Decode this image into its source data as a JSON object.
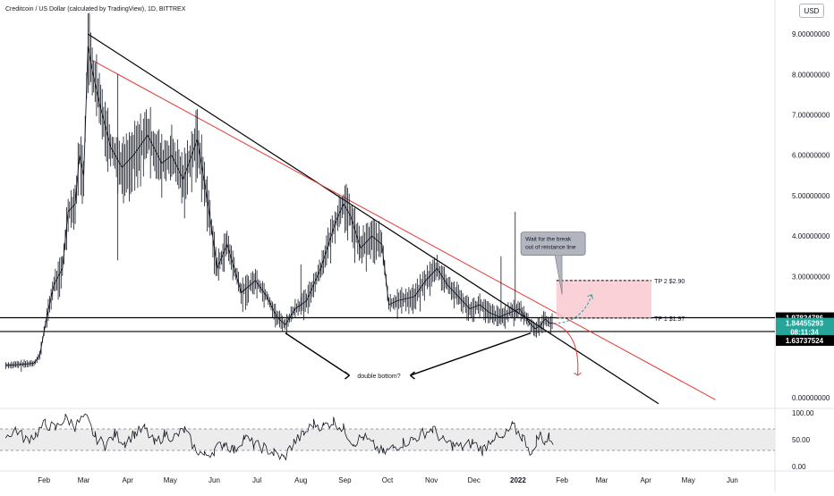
{
  "header": {
    "symbol_title": "Creditcoin / US Dollar (calculated by TradingView), 1D, BITTREX",
    "currency": "USD"
  },
  "colors": {
    "price_line": "#131722",
    "red_trendline": "#e53935",
    "tp_zone": "#f8c9cf",
    "rsi_line": "#131722",
    "current_price_badge": "#26a69a",
    "label_badge": "#000000"
  },
  "chart_data": [
    {
      "type": "line",
      "title": "",
      "y_axis": {
        "scale": "linear",
        "range": [
          -0.2,
          9.4
        ],
        "ticks": [
          "9.00000000",
          "8.00000000",
          "7.00000000",
          "6.00000000",
          "5.00000000",
          "4.00000000",
          "3.00000000",
          "0.00000000"
        ],
        "tick_values": [
          9,
          8,
          7,
          6,
          5,
          4,
          3,
          0
        ]
      },
      "x_axis": {
        "ticks": [
          "Feb",
          "Mar",
          "Apr",
          "May",
          "Jun",
          "Jul",
          "Aug",
          "Sep",
          "Oct",
          "Nov",
          "Dec",
          "2022",
          "Feb",
          "Mar",
          "Apr",
          "May",
          "Jun"
        ],
        "tick_dates": [
          "2021-02-01",
          "2021-03-01",
          "2021-04-01",
          "2021-05-01",
          "2021-06-01",
          "2021-07-01",
          "2021-08-01",
          "2021-09-01",
          "2021-10-01",
          "2021-11-01",
          "2021-12-01",
          "2022-01-01",
          "2022-02-01",
          "2022-03-01",
          "2022-04-01",
          "2022-05-01",
          "2022-06-01"
        ],
        "bold_tick": "2022"
      },
      "series": [
        {
          "points": [
            [
              "2021-01-05",
              0.8
            ],
            [
              "2021-01-15",
              0.82
            ],
            [
              "2021-01-25",
              0.85
            ],
            [
              "2021-01-29",
              1.05
            ],
            [
              "2021-02-03",
              2.0
            ],
            [
              "2021-02-08",
              2.8
            ],
            [
              "2021-02-14",
              3.2
            ],
            [
              "2021-02-18",
              4.6
            ],
            [
              "2021-02-23",
              4.8
            ],
            [
              "2021-02-26",
              6.0
            ],
            [
              "2021-03-01",
              5.5
            ],
            [
              "2021-03-04",
              8.7
            ],
            [
              "2021-03-07",
              8.1
            ],
            [
              "2021-03-12",
              7.3
            ],
            [
              "2021-03-20",
              6.2
            ],
            [
              "2021-03-28",
              5.7
            ],
            [
              "2021-04-05",
              6.0
            ],
            [
              "2021-04-15",
              6.5
            ],
            [
              "2021-04-25",
              5.8
            ],
            [
              "2021-05-02",
              6.0
            ],
            [
              "2021-05-10",
              5.4
            ],
            [
              "2021-05-20",
              6.4
            ],
            [
              "2021-05-28",
              4.7
            ],
            [
              "2021-06-03",
              3.2
            ],
            [
              "2021-06-10",
              3.8
            ],
            [
              "2021-06-20",
              2.6
            ],
            [
              "2021-06-30",
              2.9
            ],
            [
              "2021-07-08",
              2.5
            ],
            [
              "2021-07-15",
              2.0
            ],
            [
              "2021-07-21",
              1.8
            ],
            [
              "2021-07-28",
              2.2
            ],
            [
              "2021-08-05",
              2.4
            ],
            [
              "2021-08-15",
              3.2
            ],
            [
              "2021-08-25",
              4.3
            ],
            [
              "2021-08-31",
              4.8
            ],
            [
              "2021-09-05",
              4.5
            ],
            [
              "2021-09-12",
              3.7
            ],
            [
              "2021-09-20",
              4.0
            ],
            [
              "2021-09-27",
              3.8
            ],
            [
              "2021-10-02",
              2.3
            ],
            [
              "2021-10-08",
              2.4
            ],
            [
              "2021-10-20",
              2.5
            ],
            [
              "2021-10-28",
              2.9
            ],
            [
              "2021-11-05",
              3.2
            ],
            [
              "2021-11-12",
              2.8
            ],
            [
              "2021-11-20",
              2.5
            ],
            [
              "2021-11-28",
              2.2
            ],
            [
              "2021-12-05",
              2.3
            ],
            [
              "2021-12-12",
              2.1
            ],
            [
              "2021-12-19",
              2.0
            ],
            [
              "2021-12-26",
              2.1
            ],
            [
              "2022-01-02",
              2.2
            ],
            [
              "2022-01-08",
              1.9
            ],
            [
              "2022-01-13",
              1.7
            ],
            [
              "2022-01-17",
              1.8
            ],
            [
              "2022-01-20",
              1.95
            ],
            [
              "2022-01-23",
              1.85
            ],
            [
              "2022-01-26",
              1.84
            ]
          ]
        }
      ]
    },
    {
      "type": "line",
      "title": "",
      "y_axis": {
        "range": [
          0,
          100
        ],
        "ticks": [
          "100.00",
          "50.00",
          "0.00"
        ],
        "tick_values": [
          100,
          50,
          0
        ]
      },
      "series": [
        {
          "points": [
            [
              "2021-01-05",
              55
            ],
            [
              "2021-01-12",
              70
            ],
            [
              "2021-01-19",
              50
            ],
            [
              "2021-01-26",
              60
            ],
            [
              "2021-02-02",
              80
            ],
            [
              "2021-02-09",
              70
            ],
            [
              "2021-02-16",
              92
            ],
            [
              "2021-02-23",
              75
            ],
            [
              "2021-03-02",
              95
            ],
            [
              "2021-03-09",
              55
            ],
            [
              "2021-03-16",
              40
            ],
            [
              "2021-03-23",
              60
            ],
            [
              "2021-03-30",
              45
            ],
            [
              "2021-04-06",
              62
            ],
            [
              "2021-04-13",
              70
            ],
            [
              "2021-04-20",
              42
            ],
            [
              "2021-04-27",
              60
            ],
            [
              "2021-05-04",
              55
            ],
            [
              "2021-05-11",
              68
            ],
            [
              "2021-05-18",
              35
            ],
            [
              "2021-05-25",
              20
            ],
            [
              "2021-06-01",
              30
            ],
            [
              "2021-06-08",
              45
            ],
            [
              "2021-06-15",
              30
            ],
            [
              "2021-06-22",
              55
            ],
            [
              "2021-06-29",
              40
            ],
            [
              "2021-07-06",
              35
            ],
            [
              "2021-07-13",
              25
            ],
            [
              "2021-07-20",
              15
            ],
            [
              "2021-07-27",
              45
            ],
            [
              "2021-08-03",
              60
            ],
            [
              "2021-08-10",
              80
            ],
            [
              "2021-08-17",
              75
            ],
            [
              "2021-08-24",
              85
            ],
            [
              "2021-08-31",
              70
            ],
            [
              "2021-09-07",
              45
            ],
            [
              "2021-09-14",
              55
            ],
            [
              "2021-09-21",
              40
            ],
            [
              "2021-09-28",
              25
            ],
            [
              "2021-10-05",
              35
            ],
            [
              "2021-10-12",
              45
            ],
            [
              "2021-10-19",
              50
            ],
            [
              "2021-10-26",
              62
            ],
            [
              "2021-11-02",
              70
            ],
            [
              "2021-11-09",
              48
            ],
            [
              "2021-11-16",
              40
            ],
            [
              "2021-11-23",
              35
            ],
            [
              "2021-11-30",
              45
            ],
            [
              "2021-12-07",
              30
            ],
            [
              "2021-12-14",
              55
            ],
            [
              "2021-12-21",
              50
            ],
            [
              "2021-12-28",
              75
            ],
            [
              "2022-01-04",
              55
            ],
            [
              "2022-01-08",
              40
            ],
            [
              "2022-01-11",
              20
            ],
            [
              "2022-01-14",
              50
            ],
            [
              "2022-01-17",
              60
            ],
            [
              "2022-01-20",
              45
            ],
            [
              "2022-01-23",
              55
            ],
            [
              "2022-01-26",
              48
            ]
          ]
        }
      ]
    }
  ],
  "price_scale_labels": {
    "upper_level": "1.97824786",
    "current_price": "1.84455293",
    "countdown": "08:11:34",
    "lower_level": "1.63737524"
  },
  "annotations": {
    "double_bottom": "double bottom?",
    "callout": [
      "Wait for the break",
      "out of reistance line"
    ],
    "tp1": "TP 1 $1.97",
    "tp2": "TP 2 $2.90"
  },
  "levels": {
    "support_upper": 1.978,
    "support_lower": 1.637,
    "tp1": 1.97,
    "tp2": 2.9
  }
}
